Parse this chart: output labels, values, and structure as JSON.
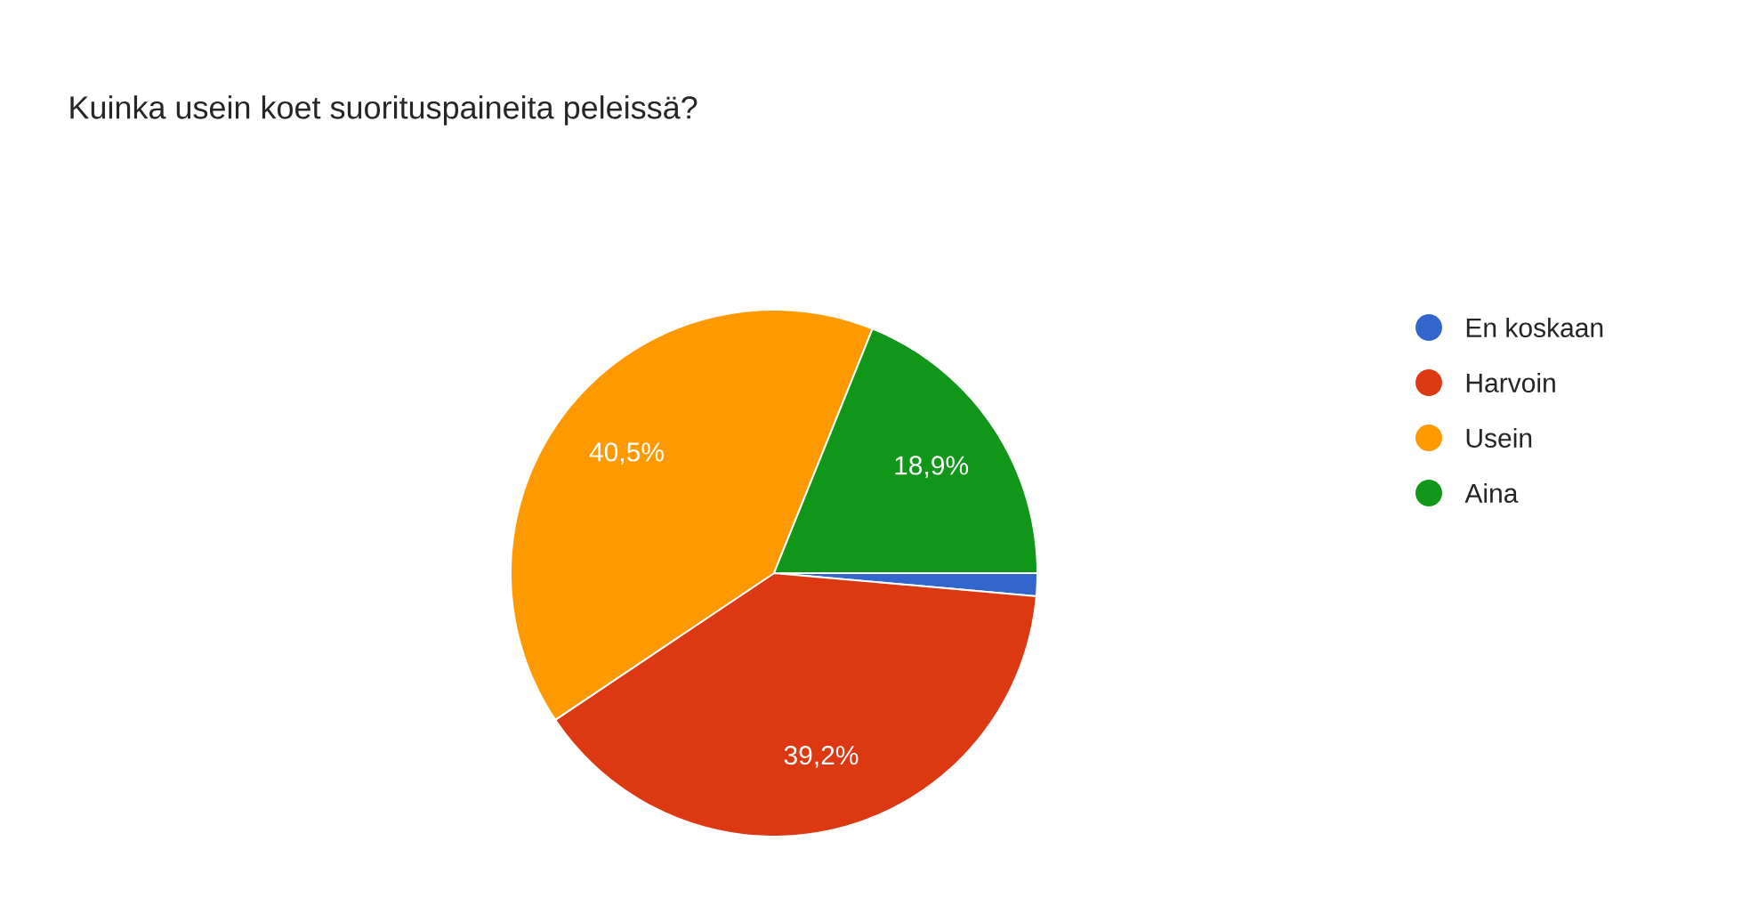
{
  "chart_data": {
    "type": "pie",
    "title": "Kuinka usein koet suorituspaineita peleissä?",
    "categories": [
      "En koskaan",
      "Harvoin",
      "Usein",
      "Aina"
    ],
    "values": [
      1.4,
      39.2,
      40.5,
      18.9
    ],
    "colors": [
      "#3366cc",
      "#dc3912",
      "#ff9900",
      "#109618"
    ],
    "value_labels": [
      null,
      "39,2%",
      "40,5%",
      "18,9%"
    ],
    "legend": "right"
  }
}
